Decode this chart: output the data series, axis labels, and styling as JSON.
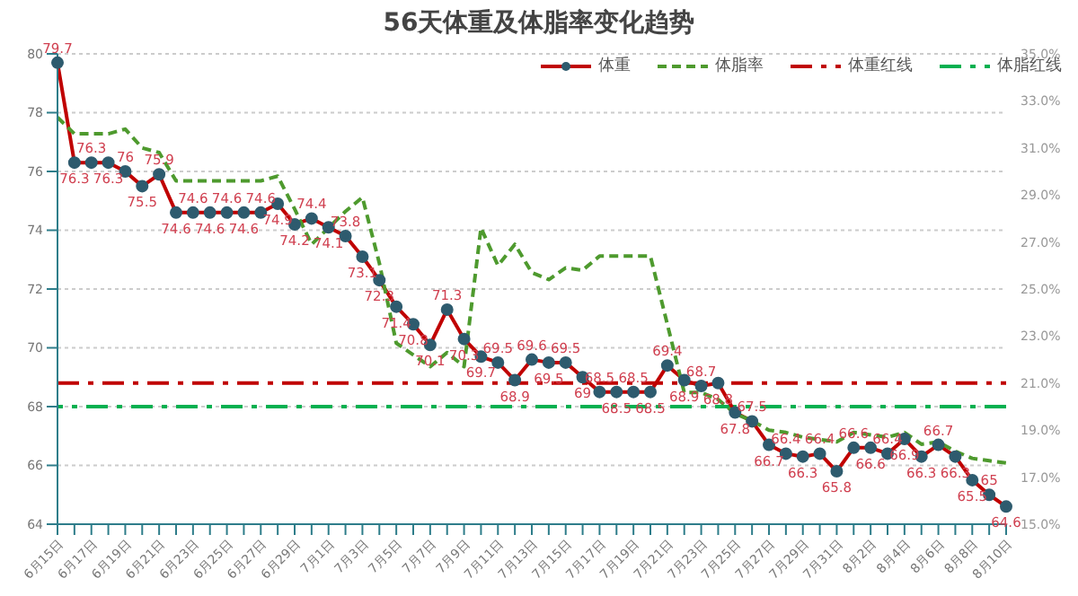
{
  "chart_data": {
    "type": "line",
    "title": "56天体重及体脂率变化趋势",
    "categories": [
      "6月15日",
      null,
      "6月17日",
      null,
      "6月19日",
      null,
      "6月21日",
      null,
      "6月23日",
      null,
      "6月25日",
      null,
      "6月27日",
      null,
      "6月29日",
      null,
      "7月1日",
      null,
      "7月3日",
      null,
      "7月5日",
      null,
      "7月7日",
      null,
      "7月9日",
      null,
      "7月11日",
      null,
      "7月13日",
      null,
      "7月15日",
      null,
      "7月17日",
      null,
      "7月19日",
      null,
      "7月21日",
      null,
      "7月23日",
      null,
      "7月25日",
      null,
      "7月27日",
      null,
      "7月29日",
      null,
      "7月31日",
      null,
      "8月2日",
      null,
      "8月4日",
      null,
      "8月6日",
      null,
      "8月8日",
      null,
      "8月10日"
    ],
    "series": [
      {
        "name": "体重",
        "color": "#c00000",
        "marker": "circle",
        "line_style": "solid",
        "data_labels": true,
        "values": [
          79.7,
          76.3,
          76.3,
          76.3,
          76,
          75.5,
          75.9,
          74.6,
          74.6,
          74.6,
          74.6,
          74.6,
          74.6,
          74.9,
          74.2,
          74.4,
          74.1,
          73.8,
          73.1,
          72.3,
          71.4,
          70.8,
          70.1,
          71.3,
          70.3,
          69.7,
          69.5,
          68.9,
          69.6,
          69.5,
          69.5,
          69,
          68.5,
          68.5,
          68.5,
          68.5,
          69.4,
          68.9,
          68.7,
          68.8,
          67.8,
          67.5,
          66.7,
          66.4,
          66.3,
          66.4,
          65.8,
          66.6,
          66.6,
          66.4,
          66.9,
          66.3,
          66.7,
          66.3,
          65.5,
          65,
          64.6
        ]
      },
      {
        "name": "体脂率",
        "color": "#4e9a2e",
        "marker": "none",
        "line_style": "dashed",
        "axis": "y2",
        "values": [
          32.3,
          31.6,
          31.6,
          31.6,
          31.8,
          31.0,
          30.8,
          29.6,
          29.6,
          29.6,
          29.6,
          29.6,
          29.6,
          29.8,
          28.4,
          26.9,
          27.6,
          28.3,
          28.9,
          26.1,
          22.7,
          22.2,
          21.7,
          22.3,
          21.7,
          27.6,
          26.0,
          26.9,
          25.7,
          25.4,
          25.9,
          25.8,
          26.4,
          26.4,
          26.4,
          26.4,
          23.5,
          20.6,
          20.6,
          20.3,
          19.7,
          19.4,
          19.0,
          18.9,
          18.7,
          18.6,
          18.5,
          18.9,
          18.8,
          18.7,
          18.9,
          18.4,
          18.5,
          18.1,
          17.8,
          17.7,
          17.6
        ]
      }
    ],
    "ref_lines": [
      {
        "axis": "y",
        "value": 68.8,
        "label": "体重红线",
        "color": "#c00000",
        "line_style": "dashed"
      },
      {
        "axis": "y2",
        "value": 20,
        "label": "体脂红线",
        "color": "#00b050",
        "line_style": "dashed"
      }
    ],
    "ylim": [
      64,
      80
    ],
    "yticks": [
      64,
      66,
      68,
      70,
      72,
      74,
      76,
      78,
      80
    ],
    "y2lim": [
      15,
      35
    ],
    "y2ticks": [
      {
        "value": 15,
        "label": "15.0%"
      },
      {
        "value": 17,
        "label": "17.0%"
      },
      {
        "value": 19,
        "label": "19.0%"
      },
      {
        "value": 21,
        "label": "21.0%"
      },
      {
        "value": 23,
        "label": "23.0%"
      },
      {
        "value": 25,
        "label": "25.0%"
      },
      {
        "value": 27,
        "label": "27.0%"
      },
      {
        "value": 29,
        "label": "29.0%"
      },
      {
        "value": 31,
        "label": "31.0%"
      },
      {
        "value": 33,
        "label": "33.0%"
      },
      {
        "value": 35,
        "label": "35.0%"
      }
    ],
    "grid": "y",
    "legend": "top"
  }
}
